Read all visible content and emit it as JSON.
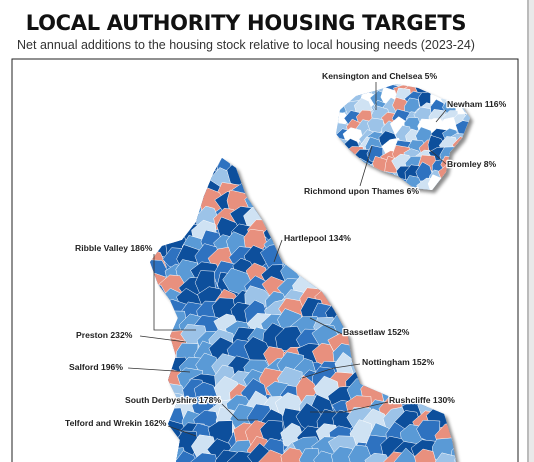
{
  "header": {
    "title": "LOCAL AUTHORITY HOUSING TARGETS",
    "subtitle": "Net annual additions to the housing stock relative to local housing needs (2023-24)"
  },
  "labels": [
    "Kensington and Chelsea 5%",
    "Newham 116%",
    "Bromley 8%",
    "Richmond upon Thames 6%",
    "Hartlepool 134%",
    "Ribble Valley 186%",
    "Preston 232%",
    "Bassetlaw 152%",
    "Nottingham 152%",
    "Salford 196%",
    "South Derbyshire 178%",
    "Rushcliffe 130%",
    "Telford and Wrekin 162%"
  ]
}
